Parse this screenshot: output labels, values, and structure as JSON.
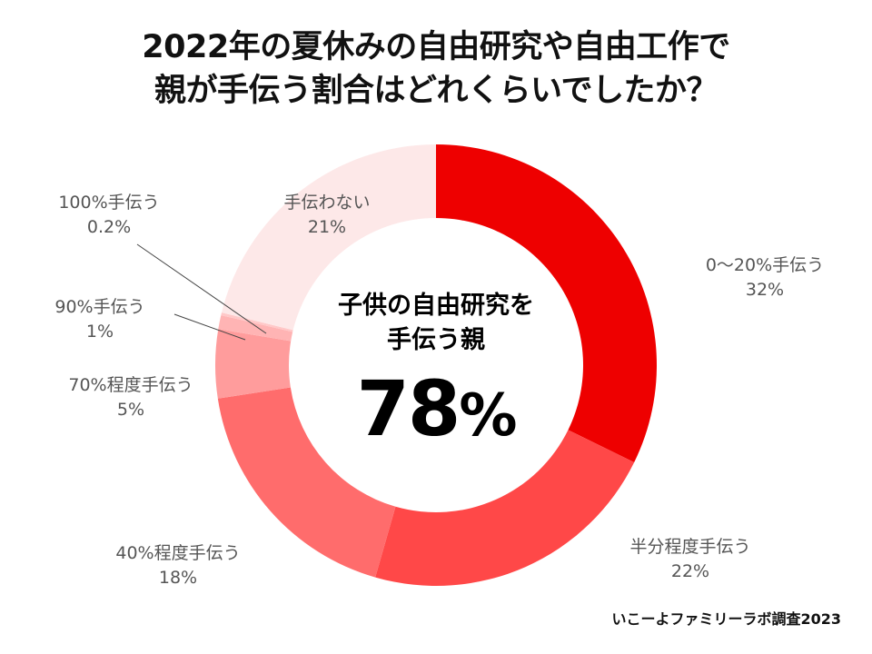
{
  "title": {
    "line1": "2022年の夏休みの自由研究や自由工作で",
    "line2": "親が手伝う割合はどれくらいでしたか？"
  },
  "center": {
    "line1": "子供の自由研究を",
    "line2": "手伝う親",
    "value": "78",
    "unit": "%"
  },
  "source": "いこーよファミリーラボ調査2023",
  "chart_data": {
    "type": "pie",
    "subtype": "donut",
    "title": "2022年の夏休みの自由研究や自由工作で親が手伝う割合はどれくらいでしたか？",
    "center_annotation": "子供の自由研究を手伝う親 78%",
    "start_angle": "top, clockwise",
    "categories": [
      "0〜20%手伝う",
      "半分程度手伝う",
      "40%程度手伝う",
      "70%程度手伝う",
      "90%手伝う",
      "100%手伝う",
      "手伝わない"
    ],
    "values": [
      32,
      22,
      18,
      5,
      1,
      0.2,
      21
    ],
    "colors": [
      "#ee0000",
      "#ff4848",
      "#ff6c6c",
      "#ff9c9c",
      "#ffb4b4",
      "#ffc8c8",
      "#fde8e8"
    ],
    "legend": "none (direct labels)",
    "source": "いこーよファミリーラボ調査2023"
  },
  "labels": [
    {
      "name": "0〜20%手伝う",
      "pct": "32%"
    },
    {
      "name": "半分程度手伝う",
      "pct": "22%"
    },
    {
      "name": "40%程度手伝う",
      "pct": "18%"
    },
    {
      "name": "70%程度手伝う",
      "pct": "5%"
    },
    {
      "name": "90%手伝う",
      "pct": "1%"
    },
    {
      "name": "100%手伝う",
      "pct": "0.2%"
    },
    {
      "name": "手伝わない",
      "pct": "21%"
    }
  ]
}
